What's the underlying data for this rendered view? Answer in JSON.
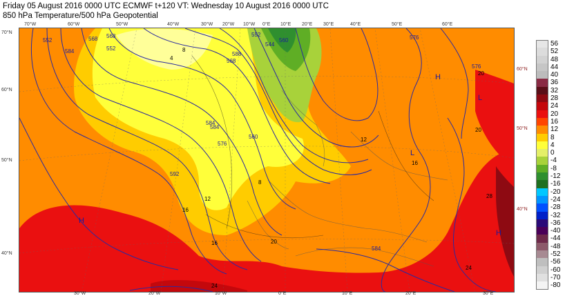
{
  "header": {
    "line1": "Friday 05 August 2016 0000 UTC  ECMWF  t+120  VT: Wednesday 10 August 2016 0000 UTC",
    "line2": "850 hPa Temperature/500 hPa Geopotential"
  },
  "axes": {
    "top": [
      "70°W",
      "60°W",
      "50°W",
      "40°W",
      "30°W",
      "20°W",
      "10°W",
      "0°E",
      "10°E",
      "20°E",
      "30°E",
      "40°E",
      "50°E",
      "60°E"
    ],
    "bottom": [
      "30°W",
      "20°W",
      "10°W",
      "0°E",
      "10°E",
      "20°E",
      "30°E"
    ],
    "left": [
      "70°N",
      "60°N",
      "50°N",
      "40°N"
    ],
    "right": [
      "60°N",
      "50°N",
      "40°N"
    ]
  },
  "legend": {
    "labels": [
      "56",
      "52",
      "48",
      "44",
      "40",
      "36",
      "32",
      "28",
      "24",
      "20",
      "16",
      "12",
      "8",
      "4",
      "0",
      "-4",
      "-8",
      "-12",
      "-16",
      "-20",
      "-24",
      "-28",
      "-32",
      "-36",
      "-40",
      "-44",
      "-48",
      "-52",
      "-56",
      "-60",
      "-70",
      "-80"
    ],
    "colors": [
      "#e6e6e6",
      "#dcdcdc",
      "#d2d2d2",
      "#c6c6c6",
      "#bcbcbc",
      "#8a2b44",
      "#5a0f18",
      "#8e0a12",
      "#c4080c",
      "#ea1010",
      "#ff4500",
      "#ff8c00",
      "#ffcc00",
      "#ffff3a",
      "#e4ef68",
      "#a8d23a",
      "#5fae25",
      "#2f8f2f",
      "#1f6f1f",
      "#00c8ff",
      "#0096ff",
      "#0050ff",
      "#0020c8",
      "#2a0a78",
      "#4a0058",
      "#6e2a4a",
      "#8c5a6a",
      "#a78a92",
      "#bfbfbf",
      "#d0d0d0",
      "#e0e0e0",
      "#f4f4f4"
    ]
  },
  "geopotential_labels": [
    "552",
    "584",
    "568",
    "568",
    "588",
    "584",
    "568",
    "544",
    "552",
    "560",
    "576",
    "560",
    "576",
    "552",
    "576",
    "592",
    "584",
    "584"
  ],
  "temperature_labels": [
    "4",
    "8",
    "12",
    "16",
    "16",
    "20",
    "20",
    "20",
    "24",
    "24",
    "28",
    "8",
    "16",
    "12"
  ],
  "pressure_centers": [
    "H",
    "H",
    "H",
    "L",
    "L"
  ]
}
